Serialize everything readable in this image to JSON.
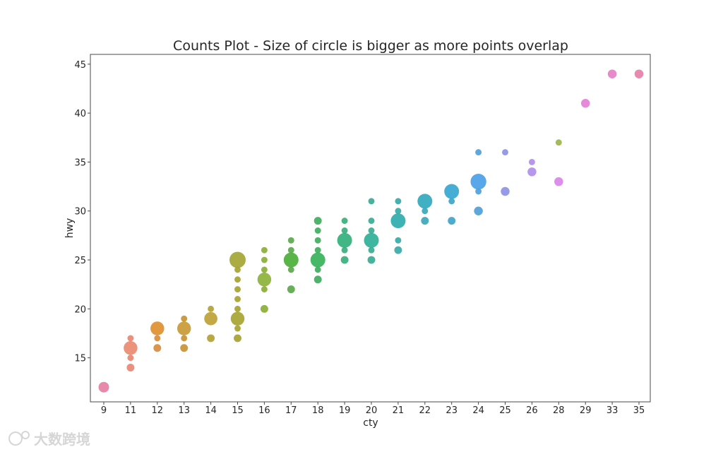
{
  "chart_data": {
    "type": "scatter",
    "title": "Counts Plot - Size of circle is bigger as more points overlap",
    "xlabel": "cty",
    "ylabel": "hwy",
    "x_is_categorical": true,
    "x_categories": [
      "9",
      "11",
      "12",
      "13",
      "14",
      "15",
      "16",
      "17",
      "18",
      "19",
      "20",
      "21",
      "22",
      "23",
      "24",
      "25",
      "26",
      "28",
      "29",
      "33",
      "35"
    ],
    "ylim": [
      10.5,
      46
    ],
    "yticks": [
      15,
      20,
      25,
      30,
      35,
      40,
      45
    ],
    "grid": false,
    "legend": "none",
    "size_meaning": "count of overlapping points",
    "points": [
      {
        "x": "9",
        "y": 12,
        "count": 5,
        "color": "#e57fa3"
      },
      {
        "x": "11",
        "y": 14,
        "count": 2,
        "color": "#e98573"
      },
      {
        "x": "11",
        "y": 15,
        "count": 1,
        "color": "#e98573"
      },
      {
        "x": "11",
        "y": 16,
        "count": 10,
        "color": "#ea8a70"
      },
      {
        "x": "11",
        "y": 17,
        "count": 1,
        "color": "#e98573"
      },
      {
        "x": "12",
        "y": 16,
        "count": 2,
        "color": "#d98c3e"
      },
      {
        "x": "12",
        "y": 17,
        "count": 1,
        "color": "#d98c3e"
      },
      {
        "x": "12",
        "y": 18,
        "count": 10,
        "color": "#e08f2e"
      },
      {
        "x": "13",
        "y": 16,
        "count": 2,
        "color": "#c79432"
      },
      {
        "x": "13",
        "y": 17,
        "count": 1,
        "color": "#c79432"
      },
      {
        "x": "13",
        "y": 18,
        "count": 10,
        "color": "#c99a34"
      },
      {
        "x": "13",
        "y": 19,
        "count": 1,
        "color": "#c79432"
      },
      {
        "x": "14",
        "y": 17,
        "count": 2,
        "color": "#b3a234"
      },
      {
        "x": "14",
        "y": 19,
        "count": 9,
        "color": "#bea236"
      },
      {
        "x": "14",
        "y": 20,
        "count": 1,
        "color": "#b3a234"
      },
      {
        "x": "15",
        "y": 17,
        "count": 2,
        "color": "#a7a332"
      },
      {
        "x": "15",
        "y": 18,
        "count": 1,
        "color": "#a7a332"
      },
      {
        "x": "15",
        "y": 19,
        "count": 10,
        "color": "#a8a433"
      },
      {
        "x": "15",
        "y": 20,
        "count": 1,
        "color": "#a7a332"
      },
      {
        "x": "15",
        "y": 21,
        "count": 1,
        "color": "#a7a332"
      },
      {
        "x": "15",
        "y": 22,
        "count": 1,
        "color": "#a7a332"
      },
      {
        "x": "15",
        "y": 23,
        "count": 1,
        "color": "#a7a332"
      },
      {
        "x": "15",
        "y": 24,
        "count": 1,
        "color": "#a7a332"
      },
      {
        "x": "15",
        "y": 25,
        "count": 15,
        "color": "#a3a634"
      },
      {
        "x": "16",
        "y": 20,
        "count": 2,
        "color": "#8cae38"
      },
      {
        "x": "16",
        "y": 22,
        "count": 1,
        "color": "#8cae38"
      },
      {
        "x": "16",
        "y": 23,
        "count": 10,
        "color": "#8db239"
      },
      {
        "x": "16",
        "y": 24,
        "count": 1,
        "color": "#8cae38"
      },
      {
        "x": "16",
        "y": 25,
        "count": 1,
        "color": "#8cae38"
      },
      {
        "x": "16",
        "y": 26,
        "count": 1,
        "color": "#8cae38"
      },
      {
        "x": "17",
        "y": 22,
        "count": 2,
        "color": "#5aa84b"
      },
      {
        "x": "17",
        "y": 24,
        "count": 1,
        "color": "#5aa84b"
      },
      {
        "x": "17",
        "y": 25,
        "count": 12,
        "color": "#4caf3a"
      },
      {
        "x": "17",
        "y": 26,
        "count": 1,
        "color": "#5aa84b"
      },
      {
        "x": "17",
        "y": 27,
        "count": 1,
        "color": "#5aa84b"
      },
      {
        "x": "18",
        "y": 23,
        "count": 2,
        "color": "#3fae5e"
      },
      {
        "x": "18",
        "y": 24,
        "count": 1,
        "color": "#3fae5e"
      },
      {
        "x": "18",
        "y": 25,
        "count": 12,
        "color": "#36b259"
      },
      {
        "x": "18",
        "y": 26,
        "count": 1,
        "color": "#3fae5e"
      },
      {
        "x": "18",
        "y": 27,
        "count": 1,
        "color": "#3fae5e"
      },
      {
        "x": "18",
        "y": 28,
        "count": 1,
        "color": "#3fae5e"
      },
      {
        "x": "18",
        "y": 29,
        "count": 2,
        "color": "#3fae5e"
      },
      {
        "x": "19",
        "y": 25,
        "count": 2,
        "color": "#3aae7b"
      },
      {
        "x": "19",
        "y": 26,
        "count": 1,
        "color": "#3aae7b"
      },
      {
        "x": "19",
        "y": 27,
        "count": 12,
        "color": "#33b07b"
      },
      {
        "x": "19",
        "y": 28,
        "count": 1,
        "color": "#3aae7b"
      },
      {
        "x": "19",
        "y": 29,
        "count": 1,
        "color": "#3aae7b"
      },
      {
        "x": "20",
        "y": 25,
        "count": 2,
        "color": "#38ad93"
      },
      {
        "x": "20",
        "y": 26,
        "count": 1,
        "color": "#38ad93"
      },
      {
        "x": "20",
        "y": 27,
        "count": 12,
        "color": "#2fb098"
      },
      {
        "x": "20",
        "y": 28,
        "count": 1,
        "color": "#38ad93"
      },
      {
        "x": "20",
        "y": 29,
        "count": 1,
        "color": "#38ad93"
      },
      {
        "x": "20",
        "y": 31,
        "count": 1,
        "color": "#38ad93"
      },
      {
        "x": "21",
        "y": 26,
        "count": 2,
        "color": "#38aaa6"
      },
      {
        "x": "21",
        "y": 27,
        "count": 1,
        "color": "#38aaa6"
      },
      {
        "x": "21",
        "y": 29,
        "count": 12,
        "color": "#2eadad"
      },
      {
        "x": "21",
        "y": 30,
        "count": 1,
        "color": "#38aaa6"
      },
      {
        "x": "21",
        "y": 31,
        "count": 1,
        "color": "#38aaa6"
      },
      {
        "x": "22",
        "y": 29,
        "count": 2,
        "color": "#3aa7b7"
      },
      {
        "x": "22",
        "y": 30,
        "count": 1,
        "color": "#3aa7b7"
      },
      {
        "x": "22",
        "y": 31,
        "count": 12,
        "color": "#31a9bd"
      },
      {
        "x": "23",
        "y": 29,
        "count": 2,
        "color": "#3fa4c7"
      },
      {
        "x": "23",
        "y": 31,
        "count": 1,
        "color": "#3fa4c7"
      },
      {
        "x": "23",
        "y": 32,
        "count": 12,
        "color": "#36a6d1"
      },
      {
        "x": "24",
        "y": 30,
        "count": 3,
        "color": "#4ea0d9"
      },
      {
        "x": "24",
        "y": 32,
        "count": 1,
        "color": "#4ea0d9"
      },
      {
        "x": "24",
        "y": 33,
        "count": 14,
        "color": "#4aa0e6"
      },
      {
        "x": "24",
        "y": 36,
        "count": 1,
        "color": "#4ea0d9"
      },
      {
        "x": "25",
        "y": 32,
        "count": 3,
        "color": "#8e93e3"
      },
      {
        "x": "25",
        "y": 36,
        "count": 1,
        "color": "#8e93e3"
      },
      {
        "x": "26",
        "y": 34,
        "count": 3,
        "color": "#b08ee8"
      },
      {
        "x": "26",
        "y": 35,
        "count": 1,
        "color": "#b08ee8"
      },
      {
        "x": "28",
        "y": 33,
        "count": 3,
        "color": "#d884e8"
      },
      {
        "x": "28",
        "y": 37,
        "count": 1,
        "color": "#9cb54a"
      },
      {
        "x": "29",
        "y": 41,
        "count": 3,
        "color": "#e47fd8"
      },
      {
        "x": "33",
        "y": 44,
        "count": 3,
        "color": "#e67fc5"
      },
      {
        "x": "35",
        "y": 44,
        "count": 3,
        "color": "#e77fa9"
      }
    ]
  },
  "watermark": {
    "text": "大数跨境"
  }
}
